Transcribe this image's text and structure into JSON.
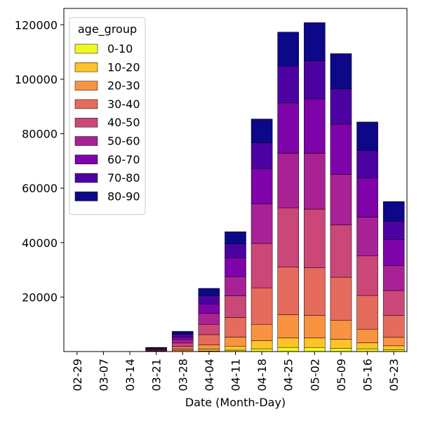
{
  "chart_data": {
    "type": "bar",
    "stacked": true,
    "xlabel": "Date (Month-Day)",
    "ylabel": "",
    "ylim": [
      0,
      126000
    ],
    "yticks": [
      20000,
      40000,
      60000,
      80000,
      100000,
      120000
    ],
    "categories": [
      "02-29",
      "03-07",
      "03-14",
      "03-21",
      "03-28",
      "04-04",
      "04-11",
      "04-18",
      "04-25",
      "05-02",
      "05-09",
      "05-16",
      "05-23"
    ],
    "legend": {
      "title": "age_group",
      "position": "top-left"
    },
    "grid": false,
    "series": [
      {
        "name": "0-10",
        "color": "#f0f921",
        "values": [
          0,
          0,
          0,
          20,
          80,
          200,
          500,
          1000,
          1500,
          1500,
          1200,
          1000,
          600
        ]
      },
      {
        "name": "10-20",
        "color": "#fdc328",
        "values": [
          0,
          0,
          0,
          60,
          250,
          700,
          1500,
          3000,
          3500,
          3500,
          3300,
          2200,
          1500
        ]
      },
      {
        "name": "20-30",
        "color": "#f89441",
        "values": [
          0,
          0,
          0,
          120,
          600,
          1500,
          3300,
          6000,
          8500,
          8300,
          6900,
          5000,
          3100
        ]
      },
      {
        "name": "30-40",
        "color": "#e56b5d",
        "values": [
          0,
          0,
          0,
          200,
          1000,
          3800,
          7200,
          13400,
          17500,
          17500,
          15900,
          12400,
          8100
        ]
      },
      {
        "name": "40-50",
        "color": "#cb4778",
        "values": [
          0,
          0,
          0,
          250,
          1200,
          3800,
          8000,
          16300,
          21800,
          21500,
          19200,
          14500,
          9100
        ]
      },
      {
        "name": "50-60",
        "color": "#a82296",
        "values": [
          0,
          0,
          0,
          250,
          1200,
          4000,
          7000,
          14500,
          20000,
          20500,
          18500,
          14200,
          9200
        ]
      },
      {
        "name": "60-70",
        "color": "#7e03a8",
        "values": [
          0,
          0,
          0,
          230,
          1000,
          3500,
          7000,
          13000,
          18500,
          20000,
          18500,
          14500,
          9500
        ]
      },
      {
        "name": "70-80",
        "color": "#4c02a1",
        "values": [
          0,
          0,
          0,
          200,
          1000,
          3000,
          5000,
          9500,
          13500,
          14000,
          13000,
          10000,
          6800
        ]
      },
      {
        "name": "80-90",
        "color": "#0d0887",
        "values": [
          0,
          0,
          0,
          200,
          1100,
          2700,
          4500,
          8700,
          12500,
          14000,
          12900,
          10500,
          7200
        ]
      }
    ]
  }
}
